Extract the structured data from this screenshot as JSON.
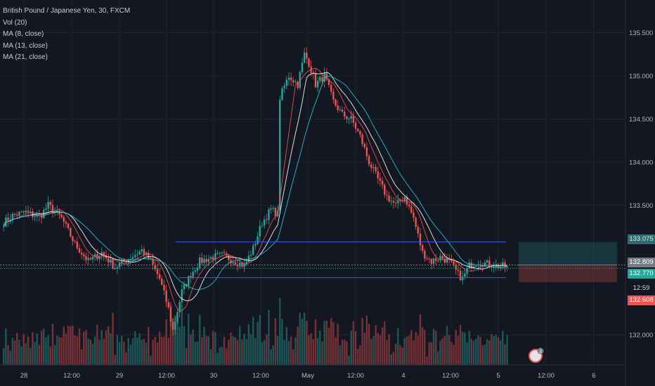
{
  "legend": {
    "symbol": "British Pound / Japanese Yen, 30, FXCM",
    "indicators": [
      "Vol (20)",
      "MA (8, close)",
      "MA (13, close)",
      "MA (21, close)"
    ]
  },
  "price_tags": [
    {
      "text": "133.075",
      "bg": "#2c6e70",
      "fg": "#e0e3eb"
    },
    {
      "text": "132.809",
      "bg": "#787b86",
      "fg": "#ffffff"
    },
    {
      "text": "132.770",
      "bg": "#26a69a",
      "fg": "#ffffff"
    },
    {
      "text": "12:59",
      "bg": "#131722",
      "fg": "#d1d4dc"
    },
    {
      "text": "132.608",
      "bg": "#ef5350",
      "fg": "#ffffff"
    }
  ],
  "colors": {
    "background": "#131722",
    "grid": "#1e222d",
    "up": "#26a69a",
    "down": "#ef5350",
    "ma8": "#ef5350",
    "ma13": "#ffffff",
    "ma21": "#26c6da",
    "hline": "#2962ff"
  },
  "chart_data": {
    "type": "candlestick",
    "title": "British Pound / Japanese Yen, 30, FXCM",
    "y_ticks": [
      "135.500",
      "135.000",
      "134.500",
      "134.000",
      "133.500",
      "132.000"
    ],
    "ylim": [
      131.7,
      135.9
    ],
    "x_ticks": [
      "28",
      "12:00",
      "29",
      "12:00",
      "30",
      "12:00",
      "May",
      "12:00",
      "4",
      "12:00",
      "5",
      "12:00",
      "6"
    ],
    "key_points": [
      [
        0,
        133.3
      ],
      [
        4,
        133.38
      ],
      [
        10,
        133.42
      ],
      [
        16,
        133.36
      ],
      [
        20,
        133.5
      ],
      [
        26,
        133.35
      ],
      [
        32,
        133.05
      ],
      [
        38,
        132.85
      ],
      [
        44,
        132.95
      ],
      [
        50,
        132.78
      ],
      [
        56,
        132.88
      ],
      [
        62,
        132.98
      ],
      [
        66,
        132.85
      ],
      [
        70,
        132.65
      ],
      [
        74,
        132.3
      ],
      [
        76,
        132.05
      ],
      [
        80,
        132.5
      ],
      [
        84,
        132.7
      ],
      [
        88,
        132.85
      ],
      [
        94,
        132.9
      ],
      [
        98,
        132.92
      ],
      [
        104,
        132.85
      ],
      [
        108,
        132.8
      ],
      [
        112,
        133.0
      ],
      [
        116,
        133.3
      ],
      [
        120,
        133.45
      ],
      [
        123,
        133.4
      ],
      [
        124,
        134.75
      ],
      [
        128,
        135.0
      ],
      [
        132,
        134.9
      ],
      [
        135,
        135.25
      ],
      [
        137,
        135.15
      ],
      [
        140,
        134.9
      ],
      [
        144,
        135.0
      ],
      [
        148,
        134.7
      ],
      [
        152,
        134.55
      ],
      [
        156,
        134.5
      ],
      [
        160,
        134.3
      ],
      [
        164,
        134.0
      ],
      [
        168,
        133.8
      ],
      [
        172,
        133.6
      ],
      [
        176,
        133.5
      ],
      [
        180,
        133.6
      ],
      [
        184,
        133.35
      ],
      [
        188,
        132.95
      ],
      [
        192,
        132.85
      ],
      [
        196,
        132.9
      ],
      [
        200,
        132.85
      ],
      [
        204,
        132.7
      ],
      [
        206,
        132.65
      ],
      [
        209,
        132.8
      ],
      [
        213,
        132.85
      ],
      [
        217,
        132.82
      ],
      [
        222,
        132.8
      ],
      [
        226,
        132.79
      ]
    ],
    "horizontal_levels": [
      133.075,
      132.809,
      132.77,
      132.662
    ],
    "position": {
      "entry": 132.809,
      "take_profit": 133.075,
      "stop_loss": 132.608
    }
  }
}
